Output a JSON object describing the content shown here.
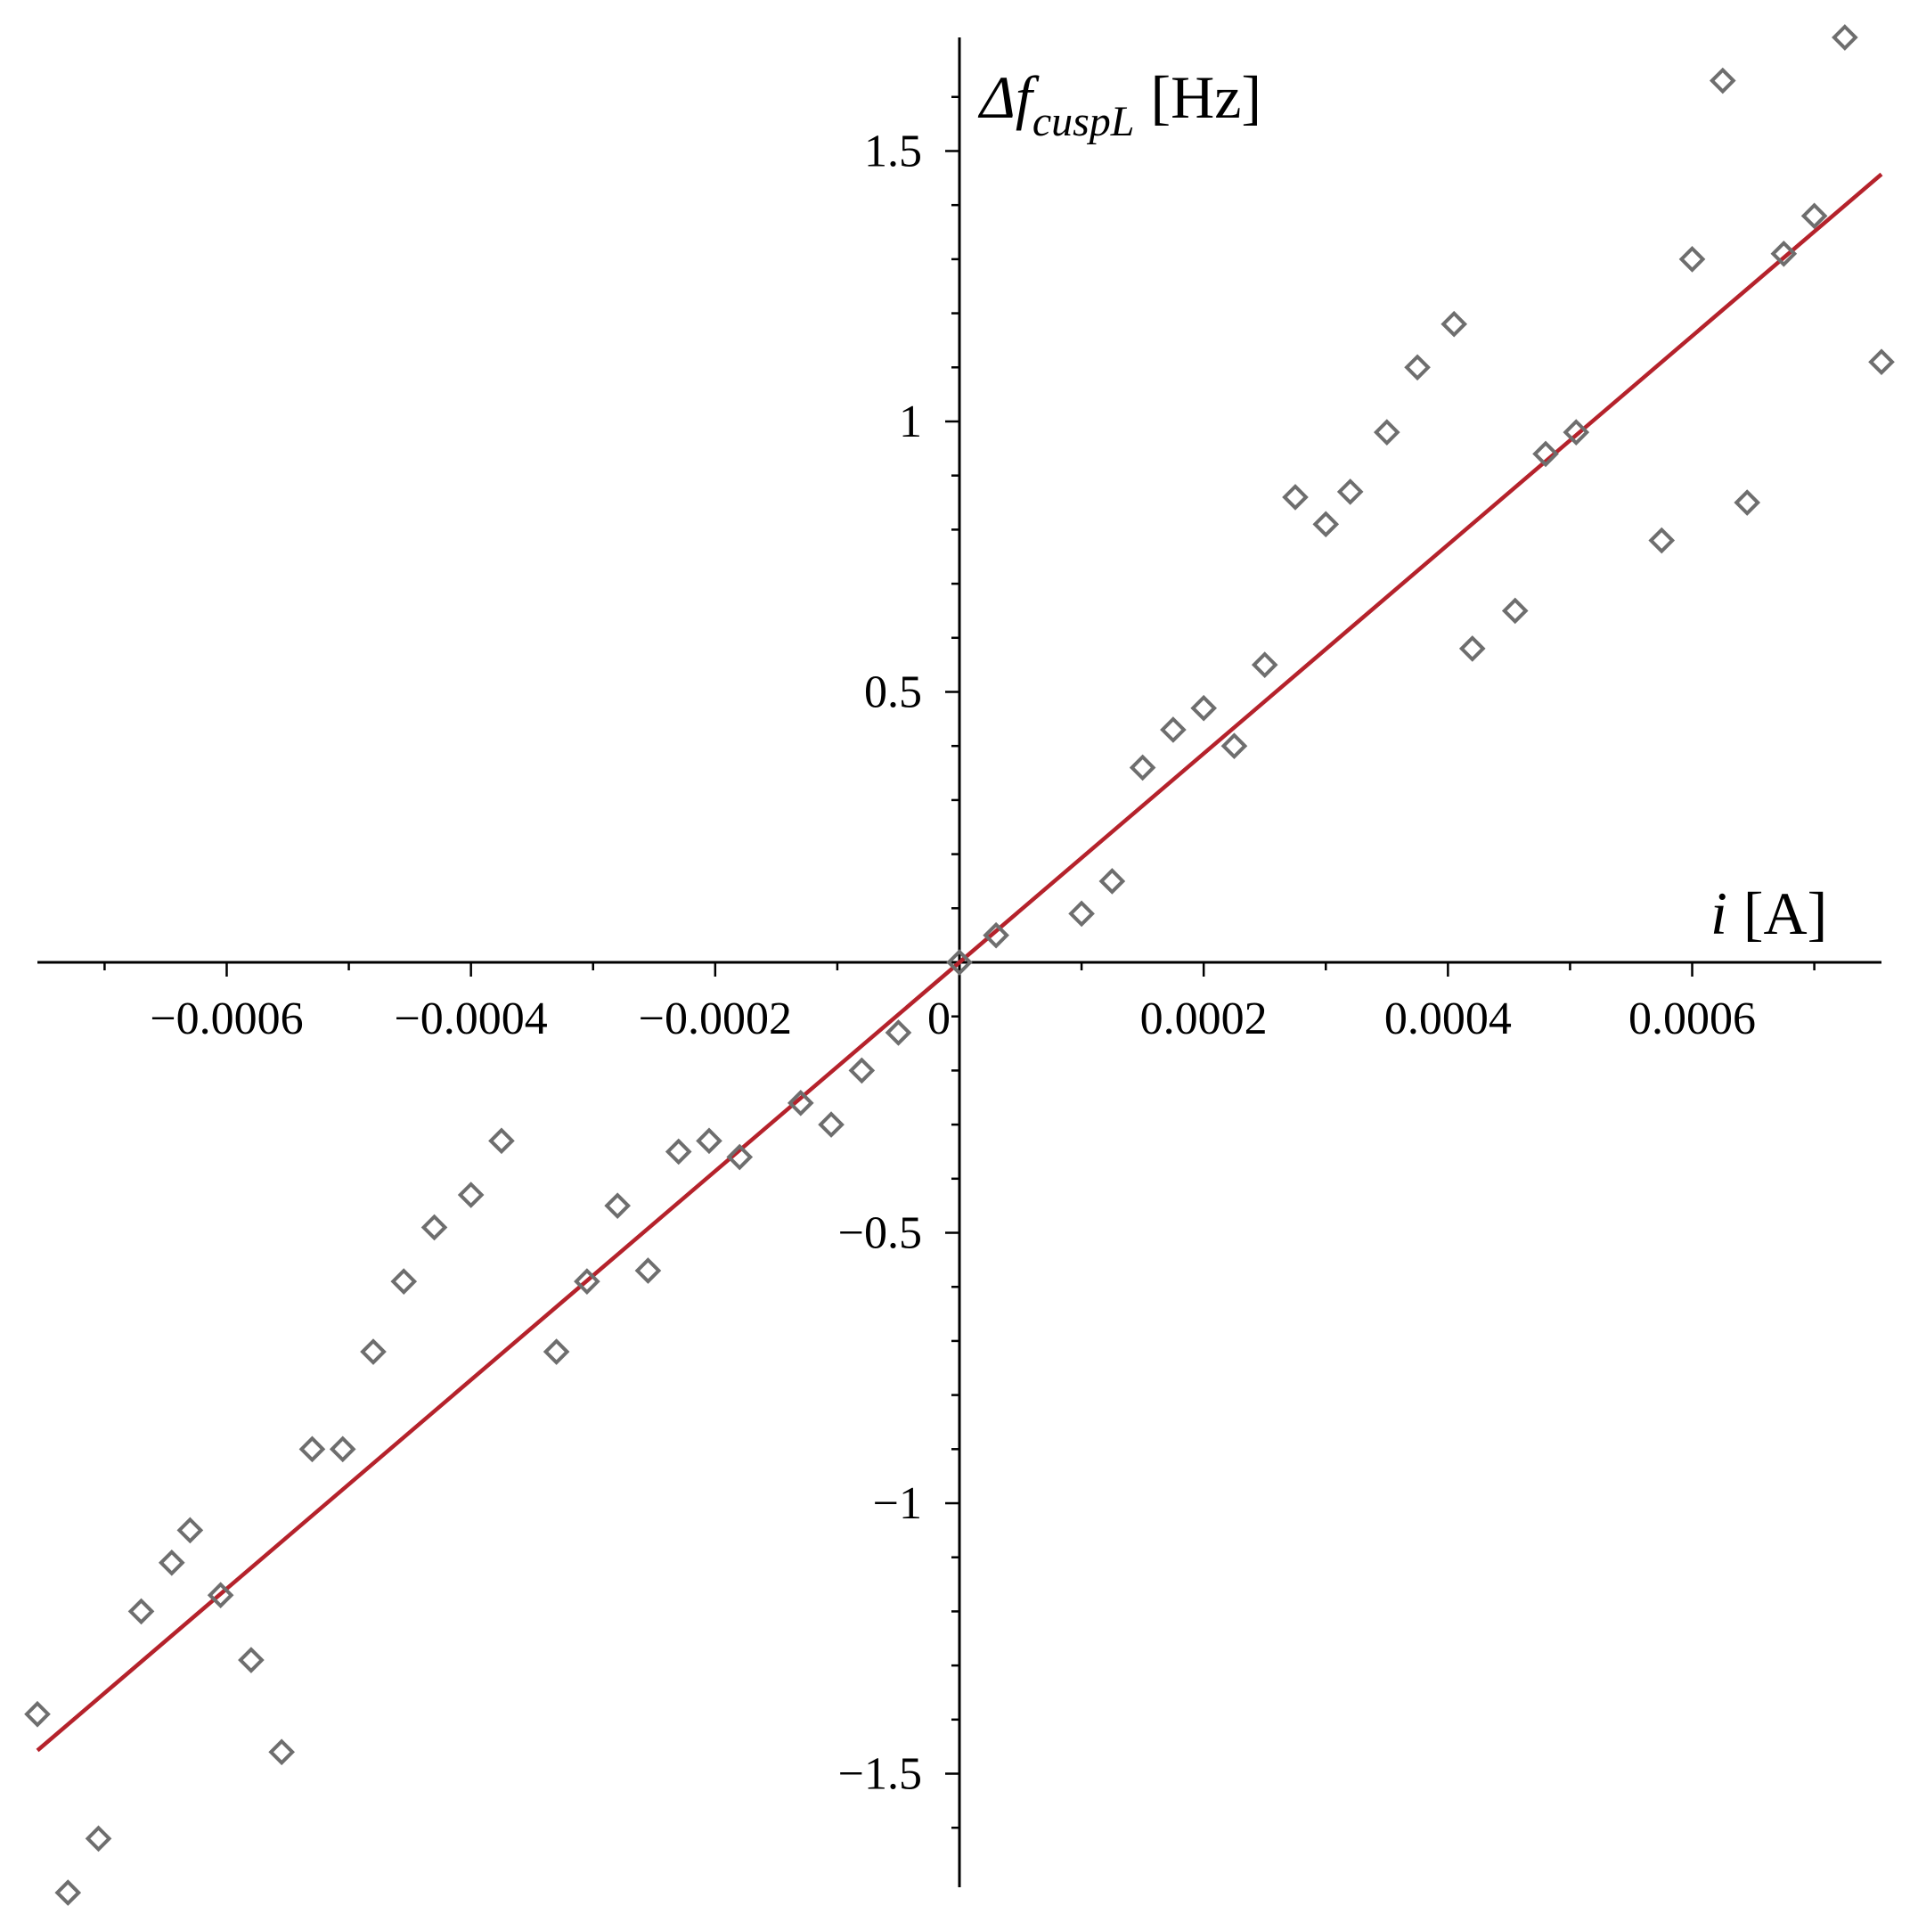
{
  "chart_data": {
    "type": "scatter",
    "xlim": [
      -0.000755,
      0.000755
    ],
    "ylim": [
      -1.71,
      1.71
    ],
    "grid": false,
    "legend": "none",
    "colors": {
      "axis": "#000000",
      "marker": "#6e6e6e",
      "fit_line": "#b5222b"
    },
    "xlabel": {
      "symbol": "i",
      "unit": "[A]"
    },
    "ylabel": {
      "symbol": "Δf",
      "subscript": "cuspL",
      "unit": "[Hz]"
    },
    "x_ticks": [
      {
        "value": -0.0006,
        "label": "−0.0006"
      },
      {
        "value": -0.0004,
        "label": "−0.0004"
      },
      {
        "value": -0.0002,
        "label": "−0.0002"
      },
      {
        "value": 0,
        "label": "0"
      },
      {
        "value": 0.0002,
        "label": "0.0002"
      },
      {
        "value": 0.0004,
        "label": "0.0004"
      },
      {
        "value": 0.0006,
        "label": "0.0006"
      }
    ],
    "y_ticks": [
      {
        "value": 1.5,
        "label": "1.5"
      },
      {
        "value": 1,
        "label": "1"
      },
      {
        "value": 0.5,
        "label": "0.5"
      },
      {
        "value": -0.5,
        "label": "−0.5"
      },
      {
        "value": -1,
        "label": "−1"
      },
      {
        "value": -1.5,
        "label": "−1.5"
      }
    ],
    "series": [
      {
        "marker": "diamond",
        "points": [
          [
            -0.000755,
            -1.39
          ],
          [
            -0.00073,
            -1.72
          ],
          [
            -0.000705,
            -1.62
          ],
          [
            -0.00067,
            -1.2
          ],
          [
            -0.000645,
            -1.11
          ],
          [
            -0.00063,
            -1.05
          ],
          [
            -0.000605,
            -1.17
          ],
          [
            -0.00058,
            -1.29
          ],
          [
            -0.000555,
            -1.46
          ],
          [
            -0.00053,
            -0.9
          ],
          [
            -0.000505,
            -0.9
          ],
          [
            -0.00048,
            -0.72
          ],
          [
            -0.000455,
            -0.59
          ],
          [
            -0.00043,
            -0.49
          ],
          [
            -0.0004,
            -0.43
          ],
          [
            -0.000375,
            -0.33
          ],
          [
            -0.00033,
            -0.72
          ],
          [
            -0.000305,
            -0.59
          ],
          [
            -0.00028,
            -0.45
          ],
          [
            -0.000255,
            -0.57
          ],
          [
            -0.00023,
            -0.35
          ],
          [
            -0.000205,
            -0.33
          ],
          [
            -0.00018,
            -0.36
          ],
          [
            -0.00013,
            -0.26
          ],
          [
            -0.000105,
            -0.3
          ],
          [
            -8e-05,
            -0.2
          ],
          [
            -5e-05,
            -0.13
          ],
          [
            0.0,
            0.0
          ],
          [
            3e-05,
            0.05
          ],
          [
            0.0001,
            0.09
          ],
          [
            0.000125,
            0.15
          ],
          [
            0.00015,
            0.36
          ],
          [
            0.000175,
            0.43
          ],
          [
            0.0002,
            0.47
          ],
          [
            0.000225,
            0.4
          ],
          [
            0.00025,
            0.55
          ],
          [
            0.000275,
            0.86
          ],
          [
            0.0003,
            0.81
          ],
          [
            0.00032,
            0.87
          ],
          [
            0.00035,
            0.98
          ],
          [
            0.000375,
            1.1
          ],
          [
            0.000405,
            1.18
          ],
          [
            0.00042,
            0.58
          ],
          [
            0.000455,
            0.65
          ],
          [
            0.00048,
            0.94
          ],
          [
            0.000505,
            0.98
          ],
          [
            0.000575,
            0.78
          ],
          [
            0.0006,
            1.3
          ],
          [
            0.000625,
            1.63
          ],
          [
            0.000645,
            0.85
          ],
          [
            0.000675,
            1.31
          ],
          [
            0.0007,
            1.38
          ],
          [
            0.000725,
            1.71
          ],
          [
            0.000755,
            1.11
          ]
        ]
      }
    ],
    "fit_line": {
      "slope": 1930,
      "intercept": 0,
      "x_range": [
        -0.000755,
        0.000755
      ]
    }
  }
}
